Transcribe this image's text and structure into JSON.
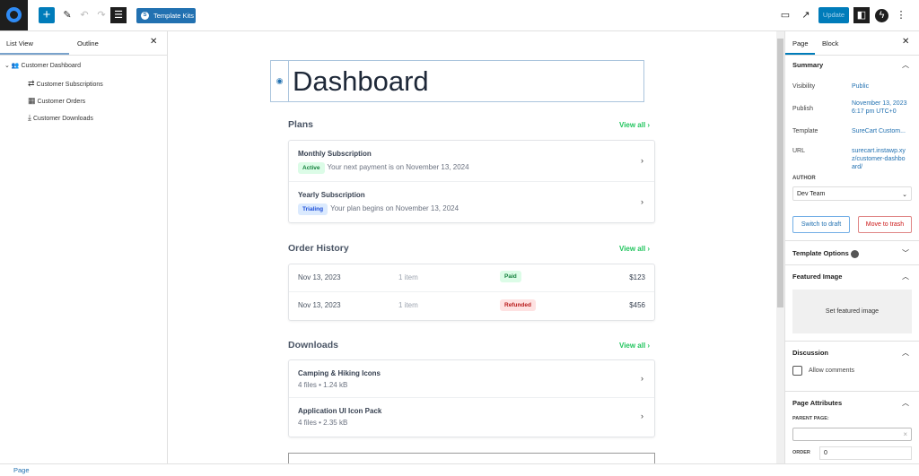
{
  "toolbar": {
    "template_kits": "Template Kits",
    "update": "Update"
  },
  "left_panel": {
    "tabs": [
      "List View",
      "Outline"
    ],
    "tree": [
      {
        "label": "Customer Dashboard",
        "icon": "users-icon"
      },
      {
        "label": "Customer Subscriptions",
        "icon": "repeat-icon"
      },
      {
        "label": "Customer Orders",
        "icon": "store-icon"
      },
      {
        "label": "Customer Downloads",
        "icon": "download-icon"
      }
    ]
  },
  "editor": {
    "title": "Dashboard",
    "plans": {
      "heading": "Plans",
      "view_all": "View all",
      "items": [
        {
          "name": "Monthly Subscription",
          "badge": "Active",
          "text": "Your next payment is on November 13, 2024"
        },
        {
          "name": "Yearly Subscription",
          "badge": "Trialing",
          "text": "Your plan begins on November 13, 2024"
        }
      ]
    },
    "orders": {
      "heading": "Order History",
      "view_all": "View all",
      "items": [
        {
          "date": "Nov 13, 2023",
          "count": "1 item",
          "status": "Paid",
          "amount": "$123"
        },
        {
          "date": "Nov 13, 2023",
          "count": "1 item",
          "status": "Refunded",
          "amount": "$456"
        }
      ]
    },
    "downloads": {
      "heading": "Downloads",
      "view_all": "View all",
      "items": [
        {
          "name": "Camping & Hiking Icons",
          "meta": "4 files • 1.24 kB"
        },
        {
          "name": "Application UI Icon Pack",
          "meta": "4 files • 2.35 kB"
        }
      ]
    }
  },
  "right_panel": {
    "tabs": [
      "Page",
      "Block"
    ],
    "summary": {
      "heading": "Summary",
      "visibility_label": "Visibility",
      "visibility": "Public",
      "publish_label": "Publish",
      "publish": "November 13, 2023 6:17 pm UTC+0",
      "template_label": "Template",
      "template": "SureCart Custom...",
      "url_label": "URL",
      "url": "surecart.instawp.xyz/customer-dashboard/",
      "author_label": "AUTHOR",
      "author": "Dev Team",
      "switch_draft": "Switch to draft",
      "trash": "Move to trash"
    },
    "template_options": "Template Options",
    "featured_image": {
      "heading": "Featured Image",
      "button": "Set featured image"
    },
    "discussion": {
      "heading": "Discussion",
      "allow_comments": "Allow comments"
    },
    "page_attributes": {
      "heading": "Page Attributes",
      "parent_label": "PARENT PAGE:",
      "order_label": "ORDER",
      "order": "0"
    }
  },
  "footer": {
    "breadcrumb": "Page"
  },
  "colors": {
    "accent": "#007cba",
    "green": "#22c55e",
    "red": "#dc2626"
  }
}
